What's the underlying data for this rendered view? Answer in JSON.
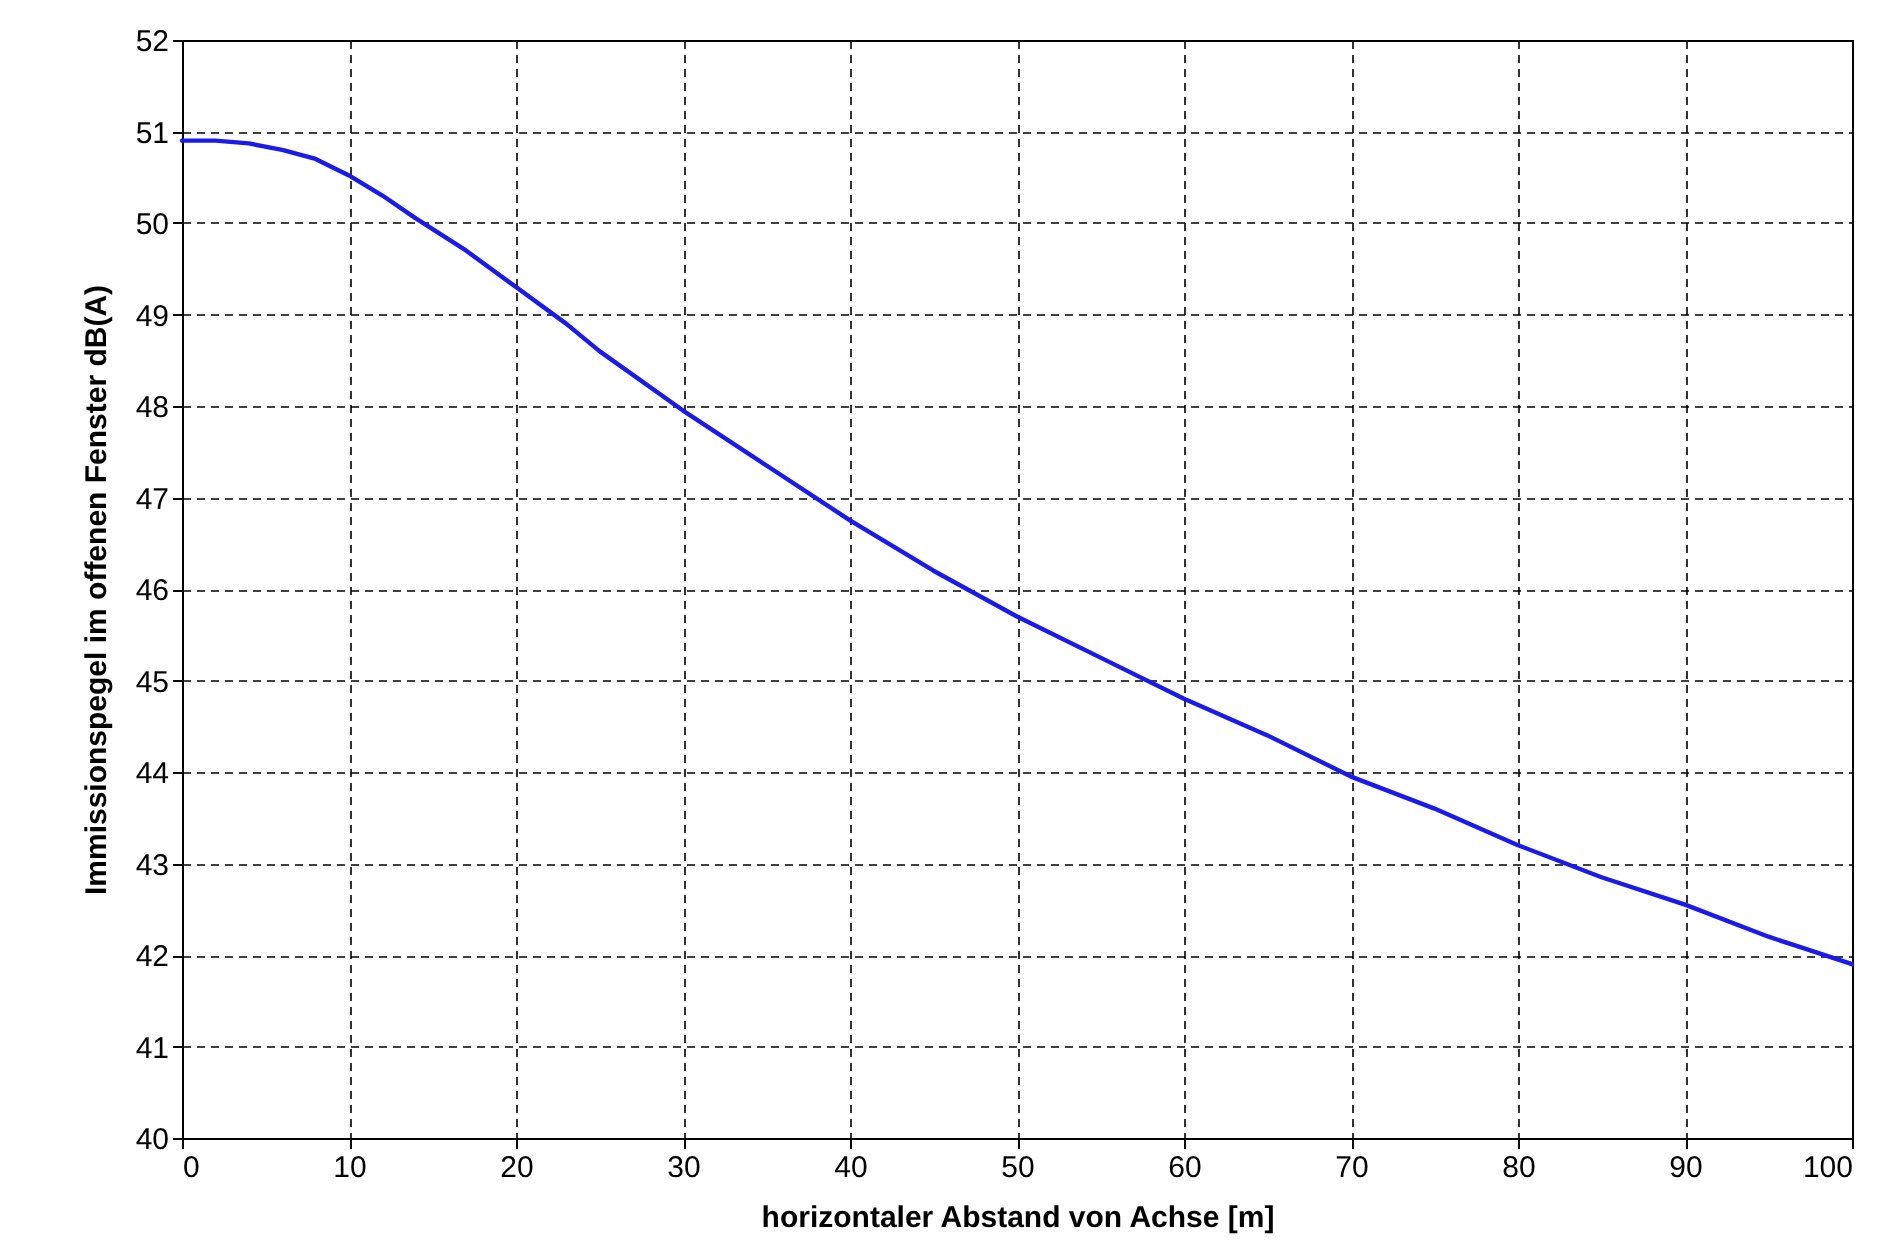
{
  "chart_data": {
    "type": "line",
    "xlabel": "horizontaler Abstand von Achse [m]",
    "ylabel": "Immissionspegel im offenen Fenster dB(A)",
    "x": [
      0,
      2,
      4,
      6,
      8,
      10,
      12,
      14,
      17,
      20,
      23,
      25,
      30,
      35,
      40,
      45,
      50,
      55,
      60,
      65,
      70,
      75,
      80,
      85,
      90,
      95,
      97,
      100
    ],
    "series": [
      {
        "color": "#1a1aee",
        "values": [
          50.9,
          50.9,
          50.87,
          50.8,
          50.7,
          50.52,
          50.3,
          50.05,
          49.7,
          49.3,
          48.9,
          48.6,
          47.95,
          47.35,
          46.75,
          46.2,
          45.7,
          45.25,
          44.8,
          44.4,
          43.95,
          43.6,
          43.2,
          42.85,
          42.55,
          42.2,
          42.08,
          41.9
        ]
      }
    ],
    "xlim": [
      0,
      100
    ],
    "xticks": [
      0,
      10,
      20,
      30,
      40,
      50,
      60,
      70,
      80,
      90,
      100
    ],
    "ylim": [
      40,
      52
    ],
    "yticks": [
      40,
      41,
      42,
      43,
      44,
      45,
      46,
      47,
      48,
      49,
      50,
      51,
      52
    ],
    "grid": true,
    "line_style": "solid",
    "marker": "none"
  }
}
